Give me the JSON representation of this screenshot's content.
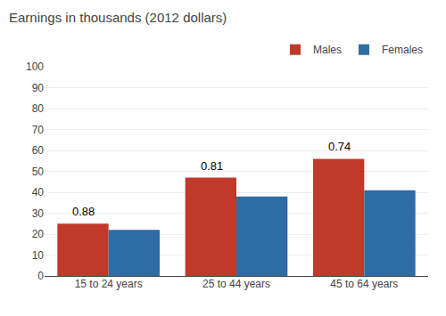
{
  "chart_data": {
    "type": "bar",
    "title": "Earnings in thousands (2012 dollars)",
    "categories": [
      "15 to 24 years",
      "25 to 44 years",
      "45 to 64 years"
    ],
    "series": [
      {
        "name": "Males",
        "color": "#c0392b",
        "values": [
          25,
          47,
          56
        ]
      },
      {
        "name": "Females",
        "color": "#2e6da4",
        "values": [
          22,
          38,
          41
        ]
      }
    ],
    "annotations": [
      "0.88",
      "0.81",
      "0.74"
    ],
    "ylim": [
      0,
      100
    ],
    "yticks": [
      0,
      10,
      20,
      30,
      40,
      50,
      60,
      70,
      80,
      90,
      100
    ],
    "grid": true,
    "legend": "upper right"
  }
}
